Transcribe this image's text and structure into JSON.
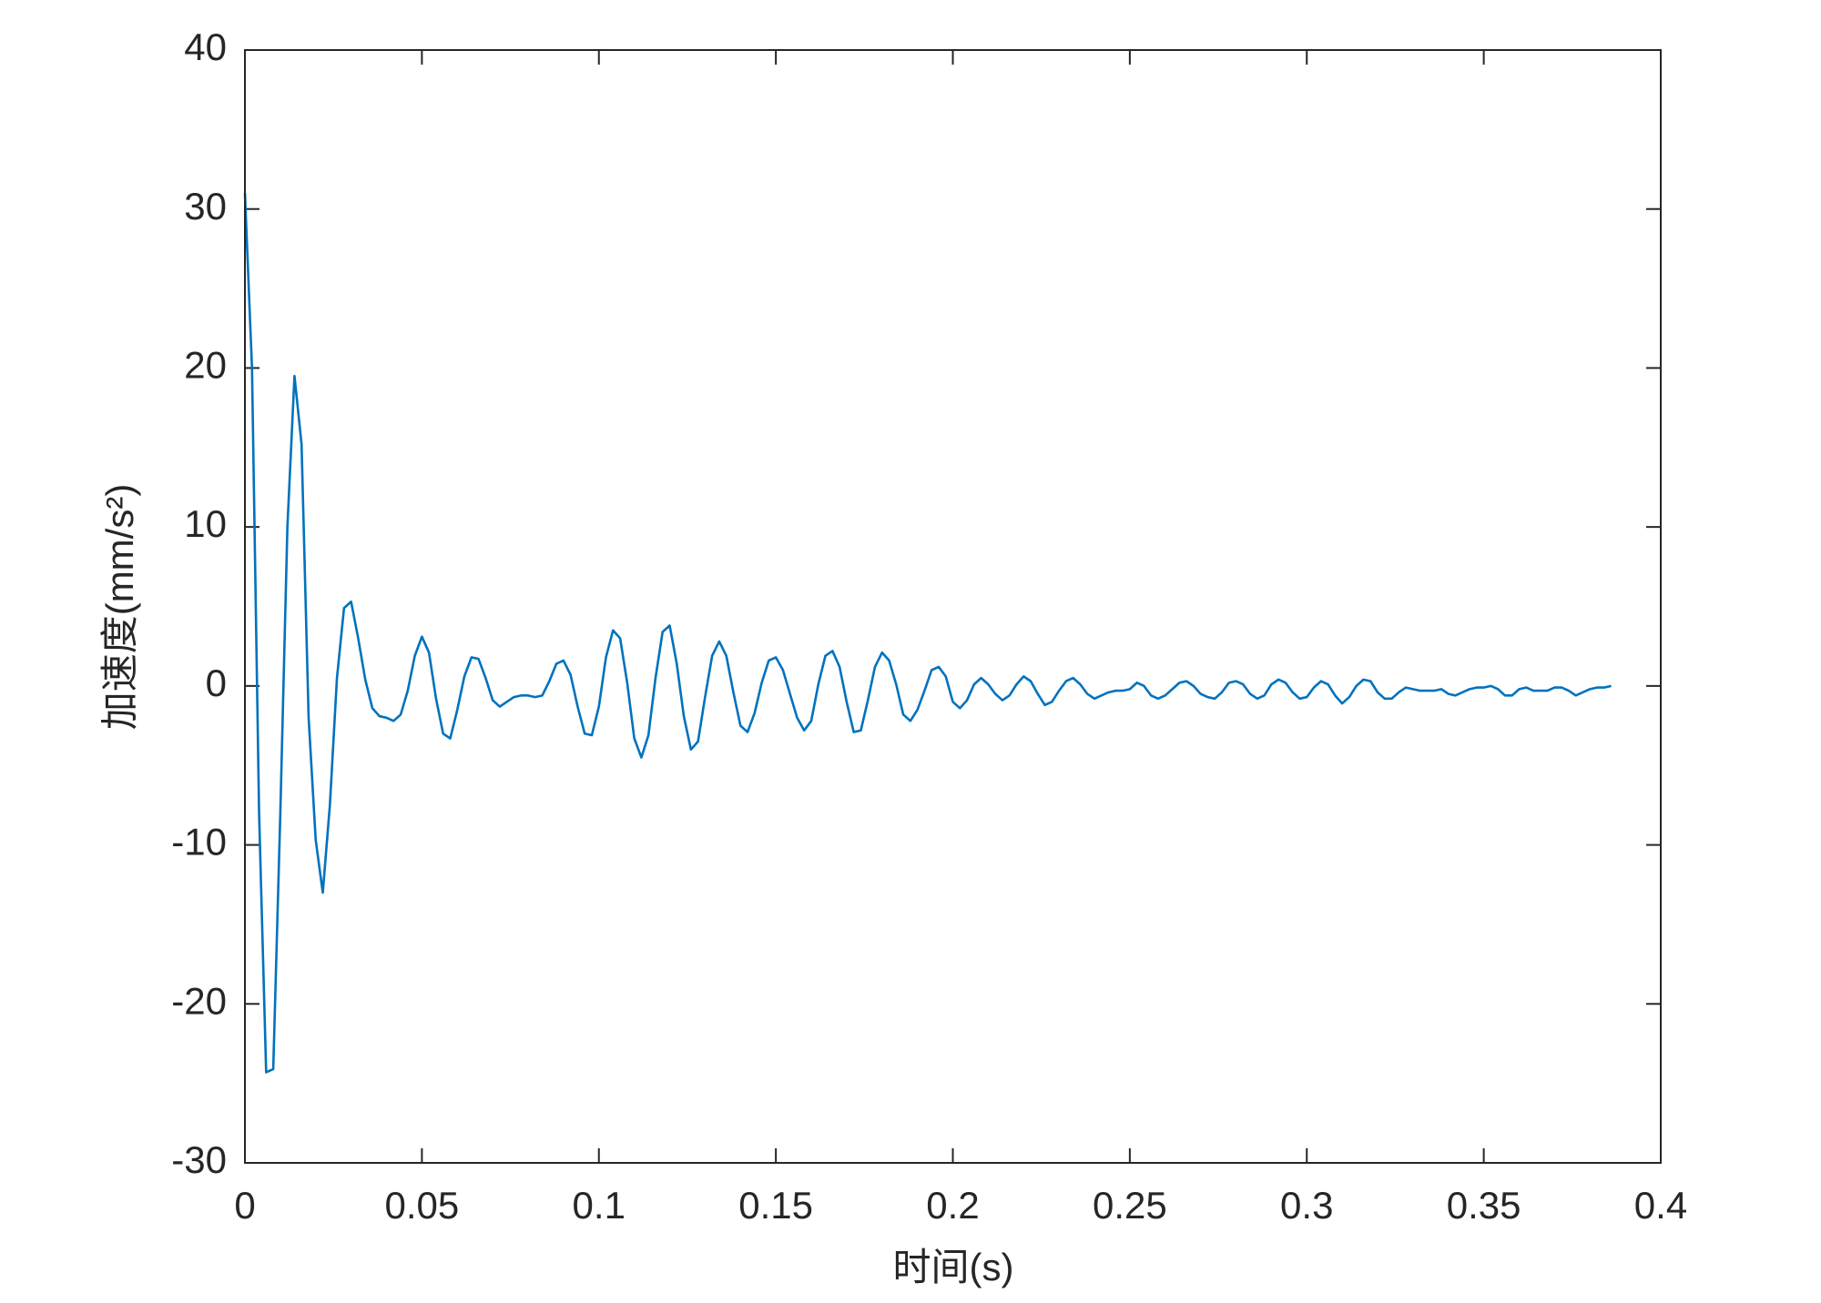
{
  "chart_data": {
    "type": "line",
    "xlabel": "时间(s)",
    "ylabel": "加速度(mm/s²)",
    "xlim": [
      0,
      0.4
    ],
    "xticks": [
      0,
      0.05,
      0.1,
      0.15,
      0.2,
      0.25,
      0.3,
      0.35,
      0.4
    ],
    "ylim": [
      -30,
      40
    ],
    "yticks": [
      -30,
      -20,
      -10,
      0,
      10,
      20,
      30,
      40
    ],
    "grid": false,
    "x": [
      0,
      0.002,
      0.004,
      0.006,
      0.008,
      0.01,
      0.012,
      0.014,
      0.016,
      0.018,
      0.02,
      0.022,
      0.024,
      0.026,
      0.028,
      0.03,
      0.032,
      0.034,
      0.036,
      0.038,
      0.04,
      0.042,
      0.044,
      0.046,
      0.048,
      0.05,
      0.052,
      0.054,
      0.056,
      0.058,
      0.06,
      0.062,
      0.064,
      0.066,
      0.068,
      0.07,
      0.072,
      0.074,
      0.076,
      0.078,
      0.08,
      0.082,
      0.084,
      0.086,
      0.088,
      0.09,
      0.092,
      0.094,
      0.096,
      0.098,
      0.1,
      0.102,
      0.104,
      0.106,
      0.108,
      0.11,
      0.112,
      0.114,
      0.116,
      0.118,
      0.12,
      0.122,
      0.124,
      0.126,
      0.128,
      0.13,
      0.132,
      0.134,
      0.136,
      0.138,
      0.14,
      0.142,
      0.144,
      0.146,
      0.148,
      0.15,
      0.152,
      0.154,
      0.156,
      0.158,
      0.16,
      0.162,
      0.164,
      0.166,
      0.168,
      0.17,
      0.172,
      0.174,
      0.176,
      0.178,
      0.18,
      0.182,
      0.184,
      0.186,
      0.188,
      0.19,
      0.192,
      0.194,
      0.196,
      0.198,
      0.2,
      0.202,
      0.204,
      0.206,
      0.208,
      0.21,
      0.212,
      0.214,
      0.216,
      0.218,
      0.22,
      0.222,
      0.224,
      0.226,
      0.228,
      0.23,
      0.232,
      0.234,
      0.236,
      0.238,
      0.24,
      0.242,
      0.244,
      0.246,
      0.248,
      0.25,
      0.252,
      0.254,
      0.256,
      0.258,
      0.26,
      0.262,
      0.264,
      0.266,
      0.268,
      0.27,
      0.272,
      0.274,
      0.276,
      0.278,
      0.28,
      0.282,
      0.284,
      0.286,
      0.288,
      0.29,
      0.292,
      0.294,
      0.296,
      0.298,
      0.3,
      0.302,
      0.304,
      0.306,
      0.308,
      0.31,
      0.312,
      0.314,
      0.316,
      0.318,
      0.32,
      0.322,
      0.324,
      0.326,
      0.328,
      0.33,
      0.332,
      0.334,
      0.336,
      0.338,
      0.34,
      0.342,
      0.344,
      0.346,
      0.348,
      0.35,
      0.352,
      0.354,
      0.356,
      0.358,
      0.36,
      0.362,
      0.364,
      0.366,
      0.368,
      0.37,
      0.372,
      0.374,
      0.376,
      0.378,
      0.38,
      0.382,
      0.384,
      0.386
    ],
    "series": [
      {
        "name": "加速度",
        "color": "#0072bd",
        "values": [
          31,
          20,
          -8,
          -24.3,
          -24.1,
          -8,
          10,
          19.5,
          15.2,
          -2,
          -9.7,
          -13,
          -7.5,
          0.5,
          4.9,
          5.3,
          3,
          0.4,
          -1.4,
          -1.9,
          -2,
          -2.2,
          -1.8,
          -0.3,
          1.9,
          3.1,
          2.1,
          -0.8,
          -3,
          -3.3,
          -1.5,
          0.6,
          1.8,
          1.7,
          0.5,
          -0.9,
          -1.3,
          -1,
          -0.7,
          -0.6,
          -0.6,
          -0.7,
          -0.6,
          0.3,
          1.4,
          1.6,
          0.7,
          -1.3,
          -3,
          -3.1,
          -1.3,
          1.8,
          3.5,
          3,
          0.2,
          -3.3,
          -4.5,
          -3.1,
          0.5,
          3.4,
          3.8,
          1.4,
          -1.9,
          -4,
          -3.5,
          -0.7,
          1.9,
          2.8,
          1.9,
          -0.4,
          -2.5,
          -2.9,
          -1.7,
          0.2,
          1.6,
          1.8,
          1,
          -0.5,
          -2,
          -2.8,
          -2.2,
          0.1,
          1.9,
          2.2,
          1.2,
          -1,
          -2.9,
          -2.8,
          -0.9,
          1.2,
          2.1,
          1.6,
          0.1,
          -1.8,
          -2.2,
          -1.5,
          -0.3,
          1,
          1.2,
          0.6,
          -1,
          -1.4,
          -0.9,
          0.1,
          0.5,
          0.1,
          -0.5,
          -0.9,
          -0.6,
          0.1,
          0.6,
          0.3,
          -0.5,
          -1.2,
          -1,
          -0.3,
          0.3,
          0.5,
          0.1,
          -0.5,
          -0.8,
          -0.6,
          -0.4,
          -0.3,
          -0.3,
          -0.2,
          0.2,
          0,
          -0.6,
          -0.8,
          -0.6,
          -0.2,
          0.2,
          0.3,
          0,
          -0.5,
          -0.7,
          -0.8,
          -0.4,
          0.2,
          0.3,
          0.1,
          -0.5,
          -0.8,
          -0.6,
          0.1,
          0.4,
          0.2,
          -0.4,
          -0.8,
          -0.7,
          -0.1,
          0.3,
          0.1,
          -0.6,
          -1.1,
          -0.7,
          0,
          0.4,
          0.3,
          -0.4,
          -0.8,
          -0.8,
          -0.4,
          -0.1,
          -0.2,
          -0.3,
          -0.3,
          -0.3,
          -0.2,
          -0.5,
          -0.6,
          -0.4,
          -0.2,
          -0.1,
          -0.1,
          0,
          -0.2,
          -0.6,
          -0.6,
          -0.2,
          -0.1,
          -0.3,
          -0.3,
          -0.3,
          -0.1,
          -0.1,
          -0.3,
          -0.6,
          -0.4,
          -0.2,
          -0.1,
          -0.1,
          0
        ]
      }
    ]
  }
}
